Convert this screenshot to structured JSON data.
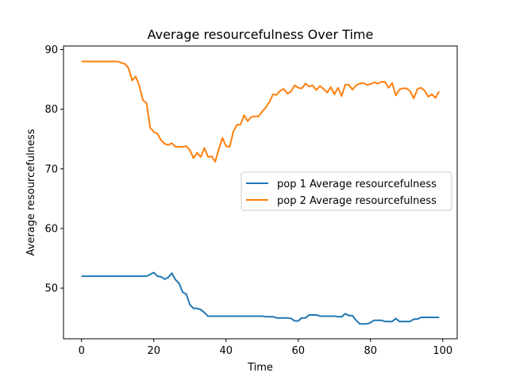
{
  "chart_data": {
    "type": "line",
    "title": "Average resourcefulness Over Time",
    "xlabel": "Time",
    "ylabel": "Average resourcefulness",
    "xlim": [
      -5,
      104
    ],
    "ylim": [
      41.5,
      90.6
    ],
    "xticks": [
      0,
      20,
      40,
      60,
      80,
      100
    ],
    "yticks": [
      50,
      60,
      70,
      80,
      90
    ],
    "grid": false,
    "legend_position": "center-right",
    "series": [
      {
        "name": "pop 1 Average resourcefulness",
        "color": "#1f77b4",
        "x": [
          0,
          1,
          2,
          3,
          4,
          5,
          6,
          7,
          8,
          9,
          10,
          11,
          12,
          13,
          14,
          15,
          16,
          17,
          18,
          19,
          20,
          21,
          22,
          23,
          24,
          25,
          26,
          27,
          28,
          29,
          30,
          31,
          32,
          33,
          34,
          35,
          36,
          37,
          38,
          39,
          40,
          41,
          42,
          43,
          44,
          45,
          46,
          47,
          48,
          49,
          50,
          51,
          52,
          53,
          54,
          55,
          56,
          57,
          58,
          59,
          60,
          61,
          62,
          63,
          64,
          65,
          66,
          67,
          68,
          69,
          70,
          71,
          72,
          73,
          74,
          75,
          76,
          77,
          78,
          79,
          80,
          81,
          82,
          83,
          84,
          85,
          86,
          87,
          88,
          89,
          90,
          91,
          92,
          93,
          94,
          95,
          96,
          97,
          98,
          99
        ],
        "values": [
          52.0,
          52.0,
          52.0,
          52.0,
          52.0,
          52.0,
          52.0,
          52.0,
          52.0,
          52.0,
          52.0,
          52.0,
          52.0,
          52.0,
          52.0,
          52.0,
          52.0,
          52.0,
          52.0,
          52.3,
          52.6,
          52.0,
          51.9,
          51.5,
          51.8,
          52.5,
          51.4,
          50.8,
          49.3,
          49.0,
          47.2,
          46.6,
          46.6,
          46.4,
          45.9,
          45.3,
          45.3,
          45.3,
          45.3,
          45.3,
          45.3,
          45.3,
          45.3,
          45.3,
          45.3,
          45.3,
          45.3,
          45.3,
          45.3,
          45.3,
          45.3,
          45.2,
          45.2,
          45.2,
          45.0,
          45.0,
          45.0,
          45.0,
          44.9,
          44.5,
          44.5,
          45.0,
          45.0,
          45.5,
          45.5,
          45.5,
          45.3,
          45.3,
          45.3,
          45.3,
          45.3,
          45.2,
          45.2,
          45.7,
          45.4,
          45.4,
          44.6,
          44.0,
          44.0,
          44.0,
          44.2,
          44.6,
          44.6,
          44.6,
          44.4,
          44.4,
          44.4,
          44.9,
          44.4,
          44.4,
          44.4,
          44.4,
          44.8,
          44.8,
          45.1,
          45.1,
          45.1,
          45.1,
          45.1,
          45.1
        ]
      },
      {
        "name": "pop 2 Average resourcefulness",
        "color": "#ff7f0e",
        "x": [
          0,
          1,
          2,
          3,
          4,
          5,
          6,
          7,
          8,
          9,
          10,
          11,
          12,
          13,
          14,
          15,
          16,
          17,
          18,
          19,
          20,
          21,
          22,
          23,
          24,
          25,
          26,
          27,
          28,
          29,
          30,
          31,
          32,
          33,
          34,
          35,
          36,
          37,
          38,
          39,
          40,
          41,
          42,
          43,
          44,
          45,
          46,
          47,
          48,
          49,
          50,
          51,
          52,
          53,
          54,
          55,
          56,
          57,
          58,
          59,
          60,
          61,
          62,
          63,
          64,
          65,
          66,
          67,
          68,
          69,
          70,
          71,
          72,
          73,
          74,
          75,
          76,
          77,
          78,
          79,
          80,
          81,
          82,
          83,
          84,
          85,
          86,
          87,
          88,
          89,
          90,
          91,
          92,
          93,
          94,
          95,
          96,
          97,
          98,
          99
        ],
        "values": [
          88.0,
          88.0,
          88.0,
          88.0,
          88.0,
          88.0,
          88.0,
          88.0,
          88.0,
          88.0,
          88.0,
          87.8,
          87.6,
          86.9,
          84.8,
          85.5,
          83.9,
          81.5,
          81.0,
          76.9,
          76.2,
          75.9,
          74.8,
          74.2,
          74.0,
          74.3,
          73.7,
          73.7,
          73.7,
          73.8,
          73.1,
          71.8,
          72.7,
          72.0,
          73.5,
          72.0,
          72.1,
          71.2,
          73.3,
          75.2,
          73.8,
          73.7,
          76.2,
          77.4,
          77.4,
          79.0,
          78.0,
          78.7,
          78.8,
          78.8,
          79.6,
          80.3,
          81.2,
          82.5,
          82.4,
          83.1,
          83.4,
          82.6,
          83.0,
          84.0,
          83.6,
          83.5,
          84.3,
          83.8,
          84.0,
          83.2,
          83.9,
          83.4,
          82.8,
          83.7,
          82.5,
          83.6,
          82.2,
          84.1,
          84.1,
          83.3,
          84.0,
          84.3,
          84.4,
          84.1,
          84.2,
          84.5,
          84.3,
          84.6,
          84.6,
          83.6,
          84.4,
          82.3,
          83.3,
          83.5,
          83.5,
          83.0,
          81.8,
          83.4,
          83.6,
          83.1,
          82.1,
          82.5,
          81.9,
          83.0
        ]
      }
    ]
  }
}
